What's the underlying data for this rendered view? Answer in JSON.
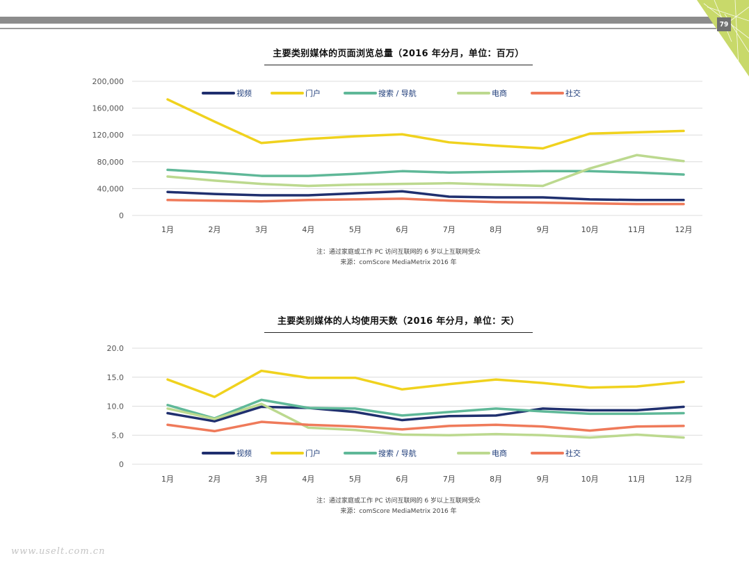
{
  "page": {
    "number": "79",
    "watermark": "www.uselt.com.cn",
    "accent_color": "#c8d96a"
  },
  "legend": [
    {
      "name": "视频",
      "color": "#1f2f6e"
    },
    {
      "name": "门户",
      "color": "#f0d21e"
    },
    {
      "name": "搜索 / 导航",
      "color": "#5fb898"
    },
    {
      "name": "电商",
      "color": "#bcd98f"
    },
    {
      "name": "社交",
      "color": "#ef7a5a"
    }
  ],
  "chart_data": [
    {
      "type": "line",
      "title": "主要类别媒体的页面浏览总量（2016 年分月，单位：百万）",
      "categories": [
        "1月",
        "2月",
        "3月",
        "4月",
        "5月",
        "6月",
        "7月",
        "8月",
        "9月",
        "10月",
        "11月",
        "12月"
      ],
      "yticks": [
        "200,000",
        "160,000",
        "120,000",
        "80,000",
        "40,000",
        "0"
      ],
      "ylim": [
        0,
        200000
      ],
      "grid": true,
      "legend_position": "top",
      "series": [
        {
          "name": "视频",
          "values": [
            35000,
            32000,
            30000,
            30000,
            33000,
            36000,
            28000,
            27000,
            27000,
            24000,
            23000,
            23000
          ]
        },
        {
          "name": "门户",
          "values": [
            173000,
            140000,
            108000,
            114000,
            118000,
            121000,
            109000,
            104000,
            100000,
            122000,
            124000,
            126000
          ]
        },
        {
          "name": "搜索 / 导航",
          "values": [
            68000,
            64000,
            59000,
            59000,
            62000,
            66000,
            64000,
            65000,
            66000,
            66000,
            64000,
            61000
          ]
        },
        {
          "name": "电商",
          "values": [
            58000,
            52000,
            47000,
            44000,
            46000,
            47000,
            48000,
            46000,
            44000,
            70000,
            90000,
            81000
          ]
        },
        {
          "name": "社交",
          "values": [
            23000,
            22000,
            21000,
            23000,
            24000,
            25000,
            22000,
            20000,
            19000,
            18000,
            17000,
            17000
          ]
        }
      ],
      "notes": [
        "注：通过家庭或工作 PC 访问互联网的 6 岁以上互联网受众",
        "来源：comScore MediaMetrix 2016 年"
      ]
    },
    {
      "type": "line",
      "title": "主要类别媒体的人均使用天数（2016 年分月，单位：天）",
      "categories": [
        "1月",
        "2月",
        "3月",
        "4月",
        "5月",
        "6月",
        "7月",
        "8月",
        "9月",
        "10月",
        "11月",
        "12月"
      ],
      "yticks": [
        "20.0",
        "15.0",
        "10.0",
        "5.0",
        "0"
      ],
      "ylim": [
        0,
        20
      ],
      "grid": true,
      "legend_position": "bottom",
      "series": [
        {
          "name": "视频",
          "values": [
            8.8,
            7.4,
            9.9,
            9.7,
            9.0,
            7.6,
            8.3,
            8.4,
            9.6,
            9.3,
            9.3,
            9.9
          ]
        },
        {
          "name": "门户",
          "values": [
            14.6,
            11.6,
            16.1,
            14.9,
            14.9,
            12.9,
            13.8,
            14.6,
            14.0,
            13.2,
            13.4,
            14.2
          ]
        },
        {
          "name": "搜索 / 导航",
          "values": [
            10.2,
            7.9,
            11.1,
            9.7,
            9.6,
            8.4,
            9.0,
            9.6,
            9.1,
            8.7,
            8.7,
            8.8
          ]
        },
        {
          "name": "电商",
          "values": [
            9.6,
            7.8,
            10.4,
            6.3,
            5.9,
            5.1,
            5.0,
            5.2,
            5.0,
            4.6,
            5.1,
            4.6
          ]
        },
        {
          "name": "社交",
          "values": [
            6.8,
            5.7,
            7.3,
            6.8,
            6.5,
            6.0,
            6.6,
            6.8,
            6.5,
            5.8,
            6.5,
            6.6
          ]
        }
      ],
      "notes": [
        "注：通过家庭或工作 PC 访问互联网的 6 岁以上互联网受众",
        "来源：comScore MediaMetrix 2016 年"
      ]
    }
  ]
}
